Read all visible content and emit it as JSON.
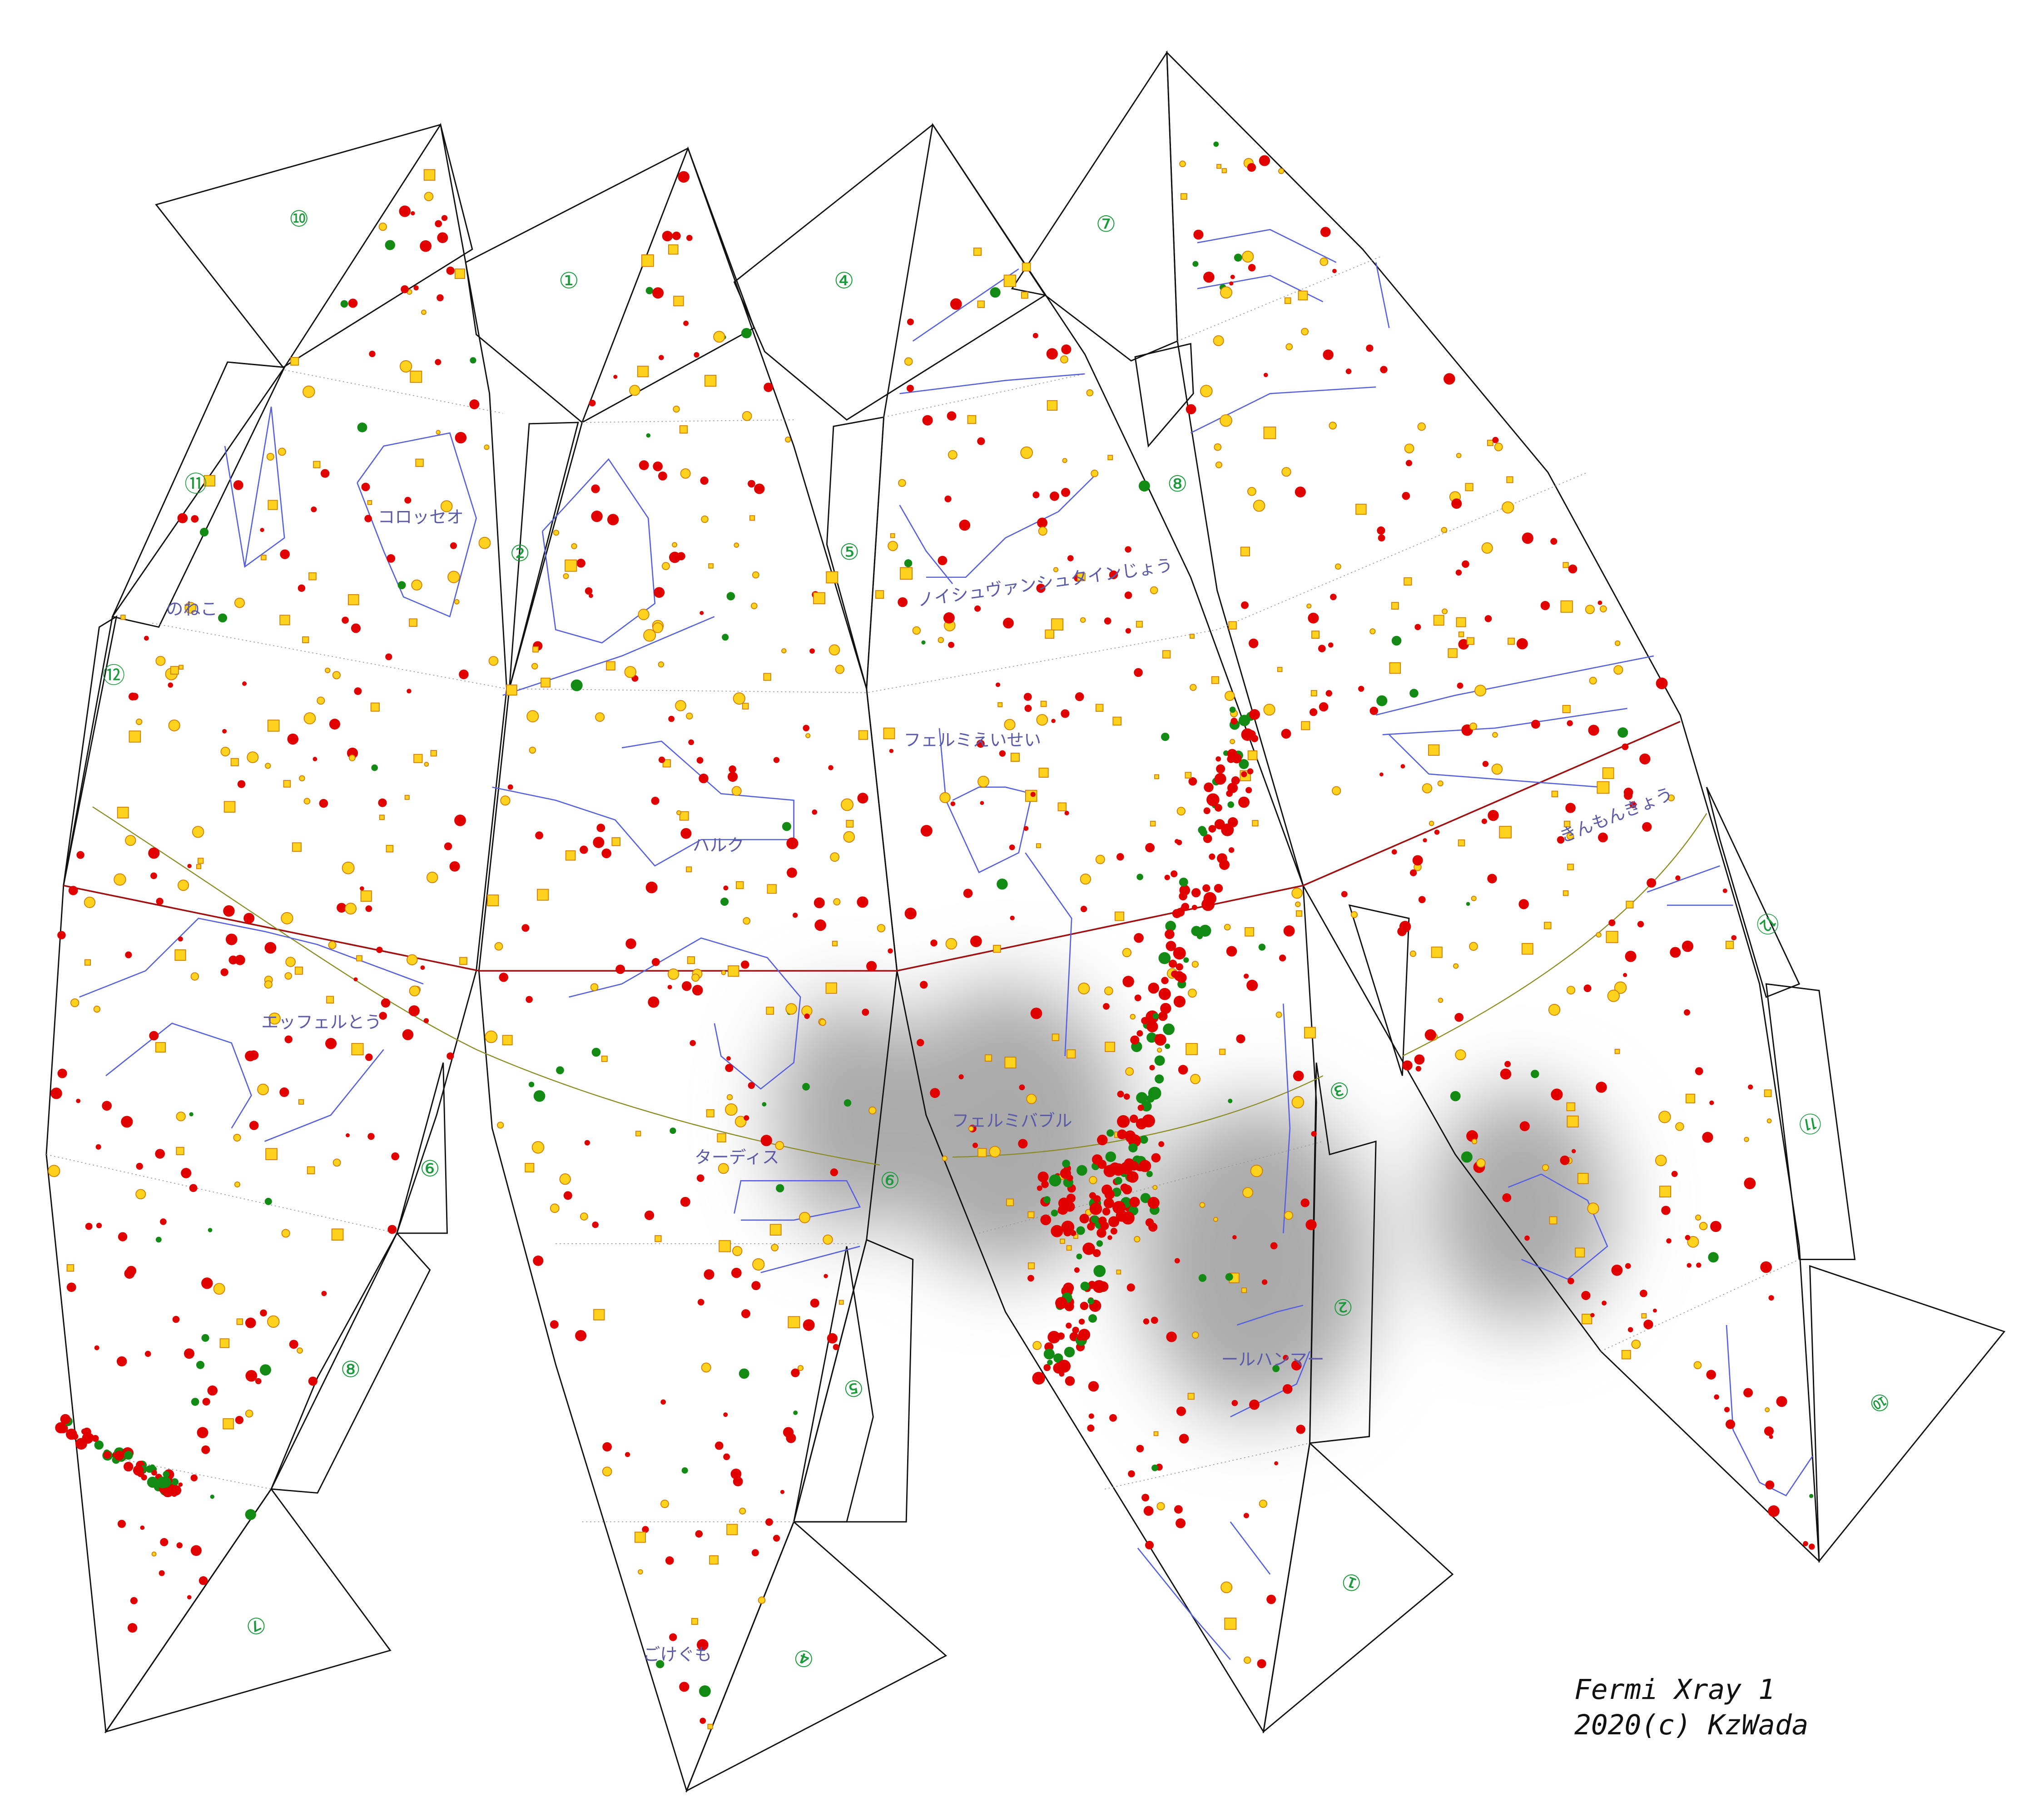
{
  "tabs": [
    "⑩",
    "①",
    "④",
    "⑦",
    "⑪",
    "②",
    "⑤",
    "⑧",
    "⑫",
    "⑥",
    "⑨",
    "③",
    "⑧",
    "⑤",
    "②",
    "⑦",
    "④",
    "①",
    "⑫",
    "⑪",
    "⑩"
  ],
  "constellations": [
    "コロッセオ",
    "のねこ",
    "ハルク",
    "ノイシュヴァンシュタインじょう",
    "フェルミえいせい",
    "エッフェルとう",
    "フェルミバブル",
    "ターディス",
    "ールハンマー",
    "きんもんきょう",
    "ごけぐも"
  ],
  "credit": {
    "title": "Fermi Xray 1",
    "copyright": "2020(c) KzWada"
  }
}
